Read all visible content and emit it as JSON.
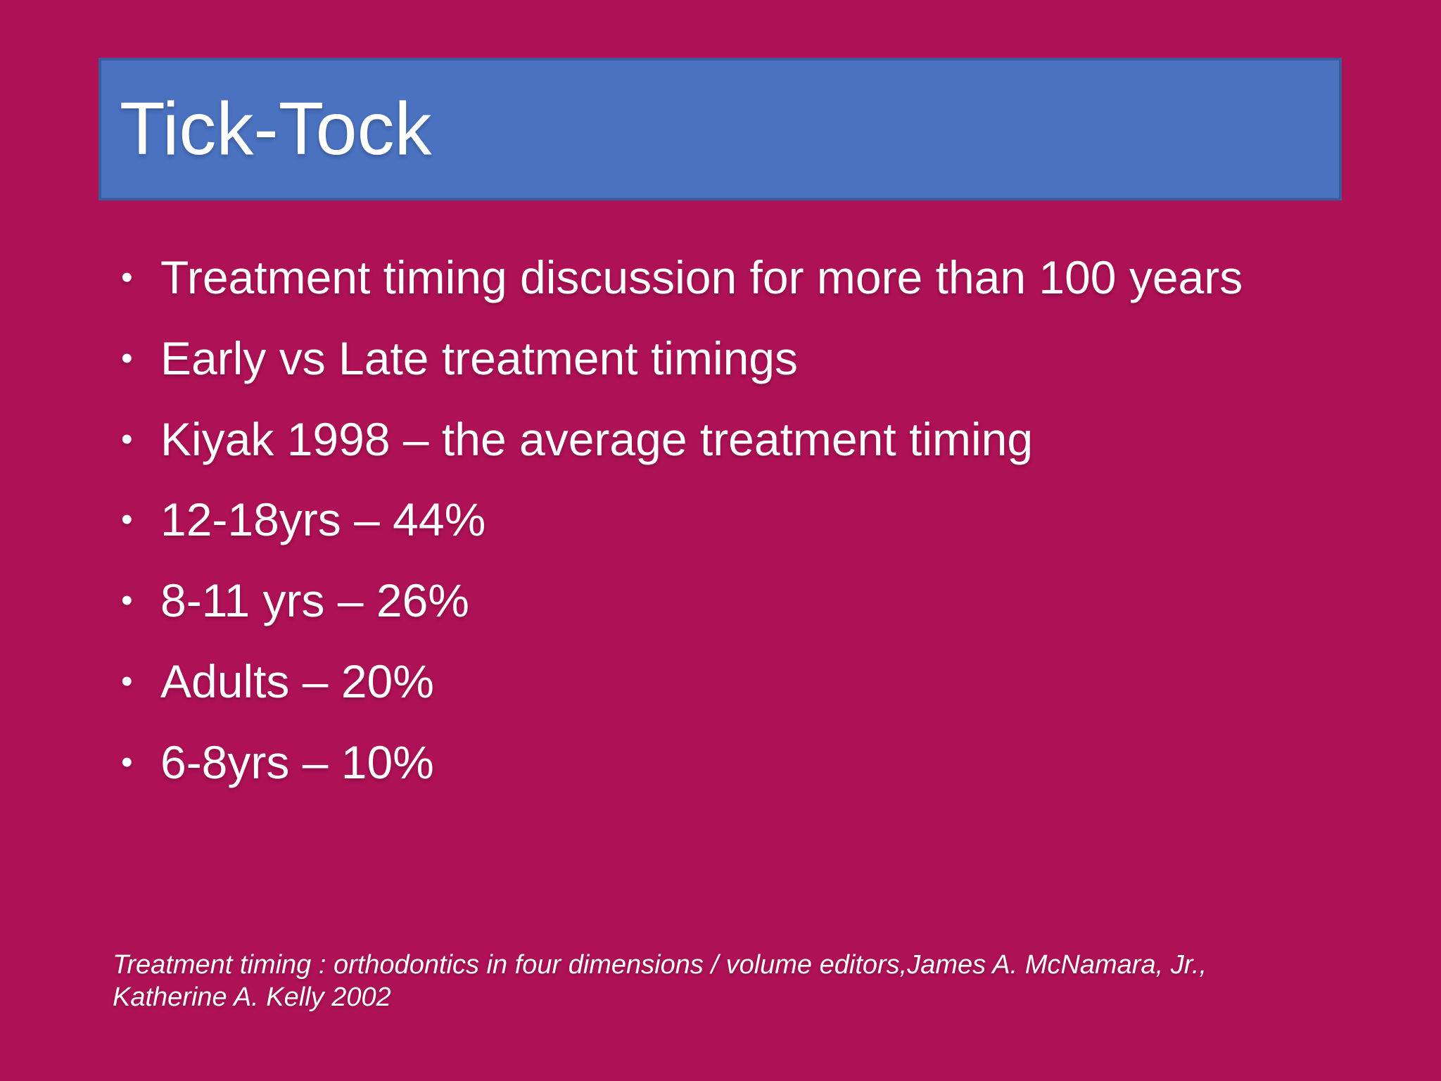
{
  "slide": {
    "title": "Tick-Tock",
    "bullet_char": "•",
    "bullets": [
      "Treatment timing discussion for more than 100 years",
      "Early vs Late treatment timings",
      "Kiyak 1998 – the average treatment timing",
      "12-18yrs – 44%",
      "8-11 yrs – 26%",
      "Adults – 20%",
      "6-8yrs – 10%"
    ],
    "citation": "Treatment timing : orthodontics in four dimensions / volume editors,James A. McNamara, Jr., Katherine A. Kelly 2002",
    "colors": {
      "background": "#AE1155",
      "title_bar_fill": "#4A72C0",
      "title_bar_border": "#3A5C9C",
      "text": "#FFFFFF"
    }
  }
}
